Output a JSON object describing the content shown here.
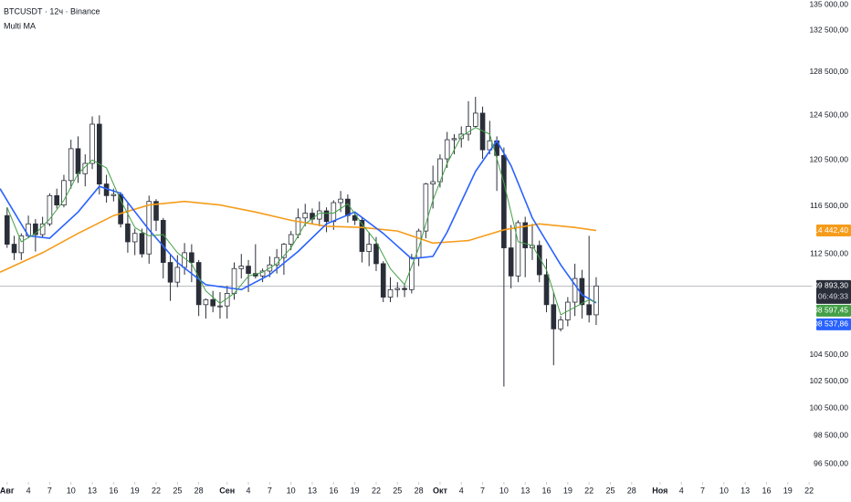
{
  "chart_data": {
    "type": "candlestick",
    "title": "BTCUSDT · 12ч · Binance",
    "subtitle": "Multi MA",
    "xlim": [
      -1,
      113.5
    ],
    "ylim": [
      95000,
      136000
    ],
    "log_scale": true,
    "up_color": "#ffffff",
    "down_color": "#2a2e39",
    "outline_color": "#2a2e39",
    "candles": [
      [
        115700,
        116400,
        113000,
        113300
      ],
      [
        113300,
        114000,
        112000,
        112600
      ],
      [
        112600,
        114200,
        112000,
        114000
      ],
      [
        114000,
        115700,
        113800,
        115000
      ],
      [
        115000,
        115400,
        112700,
        114100
      ],
      [
        114100,
        115600,
        113900,
        115000
      ],
      [
        115000,
        117600,
        114800,
        117400
      ],
      [
        117400,
        118000,
        116300,
        116600
      ],
      [
        116600,
        119200,
        116400,
        118700
      ],
      [
        118700,
        122300,
        118000,
        121500
      ],
      [
        121500,
        122600,
        118500,
        119300
      ],
      [
        119300,
        121000,
        118200,
        120200
      ],
      [
        120200,
        124400,
        119700,
        123700
      ],
      [
        123700,
        124500,
        117500,
        118400
      ],
      [
        118400,
        119200,
        116800,
        117400
      ],
      [
        117400,
        118000,
        116900,
        117500
      ],
      [
        117500,
        117700,
        114700,
        115000
      ],
      [
        115000,
        116800,
        112600,
        113500
      ],
      [
        113500,
        114600,
        112400,
        114200
      ],
      [
        114200,
        114600,
        112200,
        112500
      ],
      [
        112500,
        117400,
        111700,
        116900
      ],
      [
        116900,
        117100,
        114400,
        115300
      ],
      [
        115300,
        115500,
        110500,
        111800
      ],
      [
        111800,
        112400,
        108700,
        110200
      ],
      [
        110200,
        112400,
        109800,
        111400
      ],
      [
        111400,
        113400,
        110800,
        112600
      ],
      [
        112600,
        113300,
        110200,
        111800
      ],
      [
        111800,
        112000,
        107500,
        108400
      ],
      [
        108400,
        108900,
        107300,
        108800
      ],
      [
        108800,
        109500,
        107800,
        108300
      ],
      [
        108300,
        109400,
        107300,
        108300
      ],
      [
        108300,
        109900,
        107300,
        109300
      ],
      [
        109300,
        111800,
        108800,
        111300
      ],
      [
        111300,
        112500,
        110500,
        111500
      ],
      [
        111500,
        112000,
        109400,
        110900
      ],
      [
        110900,
        113300,
        110500,
        110700
      ],
      [
        110700,
        111300,
        110200,
        111100
      ],
      [
        111100,
        112300,
        110600,
        111600
      ],
      [
        111600,
        112900,
        110900,
        112200
      ],
      [
        112200,
        113400,
        110800,
        113300
      ],
      [
        113300,
        114400,
        112800,
        114100
      ],
      [
        114100,
        116300,
        113800,
        115500
      ],
      [
        115500,
        116700,
        114800,
        115900
      ],
      [
        115900,
        116300,
        115000,
        115400
      ],
      [
        115400,
        116900,
        114800,
        116100
      ],
      [
        116100,
        116400,
        114300,
        115200
      ],
      [
        115200,
        117000,
        114500,
        116800
      ],
      [
        116800,
        117800,
        116000,
        117100
      ],
      [
        117100,
        117500,
        115100,
        115700
      ],
      [
        115700,
        116000,
        114900,
        115300
      ],
      [
        115300,
        115500,
        111800,
        112700
      ],
      [
        112700,
        114300,
        111500,
        113300
      ],
      [
        113300,
        113900,
        111100,
        111700
      ],
      [
        111700,
        111900,
        108600,
        109000
      ],
      [
        109000,
        110600,
        108600,
        109600
      ],
      [
        109600,
        110200,
        109000,
        109700
      ],
      [
        109700,
        110100,
        109000,
        109600
      ],
      [
        109600,
        112500,
        109300,
        112200
      ],
      [
        112200,
        114600,
        111500,
        114400
      ],
      [
        114400,
        118500,
        113800,
        118400
      ],
      [
        118400,
        120000,
        116300,
        118600
      ],
      [
        118600,
        121000,
        118100,
        120600
      ],
      [
        120600,
        123000,
        119800,
        122300
      ],
      [
        122300,
        122800,
        121000,
        122400
      ],
      [
        122400,
        123500,
        121600,
        122800
      ],
      [
        122800,
        125800,
        122200,
        123500
      ],
      [
        123500,
        126200,
        123400,
        124700
      ],
      [
        124700,
        125300,
        120600,
        121400
      ],
      [
        121400,
        124000,
        121000,
        122200
      ],
      [
        122200,
        122600,
        117800,
        120900
      ],
      [
        120900,
        121600,
        102100,
        113000
      ],
      [
        113000,
        114900,
        109700,
        110700
      ],
      [
        110700,
        115300,
        110200,
        115100
      ],
      [
        115100,
        115600,
        110600,
        113000
      ],
      [
        113000,
        115000,
        112000,
        113200
      ],
      [
        113200,
        113600,
        110200,
        110800
      ],
      [
        110800,
        112100,
        107800,
        108400
      ],
      [
        108400,
        109400,
        103700,
        106500
      ],
      [
        106500,
        107500,
        106300,
        107200
      ],
      [
        107200,
        109000,
        106700,
        108600
      ],
      [
        108600,
        111700,
        107500,
        110500
      ],
      [
        110500,
        111200,
        107300,
        108400
      ],
      [
        108400,
        114000,
        107000,
        107600
      ],
      [
        107600,
        110600,
        106800,
        109893.3
      ]
    ],
    "series": [
      {
        "color": "#f59c1a",
        "x": [
          -1,
          5,
          10,
          15,
          20,
          25,
          30,
          35,
          40,
          45,
          50,
          55,
          60,
          65,
          70,
          75,
          80,
          83
        ],
        "values": [
          111000,
          112600,
          114200,
          115700,
          116600,
          116900,
          116600,
          116000,
          115300,
          114800,
          114700,
          114400,
          113400,
          113600,
          114500,
          115000,
          114700,
          114442.4
        ],
        "last_label": "114 442,40"
      },
      {
        "color": "#2962ff",
        "x": [
          -1,
          3,
          6,
          10,
          13,
          16,
          20,
          24,
          28,
          33,
          37,
          41,
          45,
          49,
          53,
          57,
          60,
          62,
          66,
          69,
          71,
          74,
          78,
          81,
          83
        ],
        "values": [
          118000,
          114000,
          113800,
          116000,
          118200,
          117600,
          114500,
          111800,
          110000,
          109600,
          110800,
          112700,
          115000,
          116000,
          114200,
          112100,
          112300,
          114300,
          119500,
          122200,
          120000,
          115500,
          111600,
          109200,
          108537.86
        ],
        "last_label": "108 537,86"
      },
      {
        "color": "#43a047",
        "x": [
          0,
          2,
          4,
          6,
          8,
          10,
          12,
          14,
          16,
          18,
          20,
          22,
          24,
          26,
          28,
          30,
          32,
          34,
          36,
          38,
          40,
          42,
          44,
          46,
          48,
          50,
          52,
          54,
          56,
          58,
          60,
          62,
          64,
          66,
          68,
          70,
          72,
          74,
          76,
          78,
          80,
          82,
          83
        ],
        "values": [
          116400,
          113500,
          114200,
          115400,
          117000,
          119300,
          120500,
          119800,
          117000,
          114700,
          114000,
          114100,
          112600,
          111700,
          109500,
          108500,
          109300,
          110700,
          111000,
          111700,
          113000,
          115000,
          115900,
          115900,
          116700,
          115000,
          113500,
          111300,
          110000,
          113000,
          117000,
          120200,
          122600,
          123400,
          122800,
          118500,
          113500,
          113200,
          111200,
          107600,
          108200,
          108800,
          108597.45
        ],
        "last_label": "108 597,45"
      }
    ],
    "last_price": {
      "value": 109893.3,
      "label": "109 893,30"
    },
    "countdown": "06:49:33",
    "yticks": [
      {
        "value": 135000,
        "label": "135 000,00"
      },
      {
        "value": 132500,
        "label": "132 500,00"
      },
      {
        "value": 128500,
        "label": "128 500,00"
      },
      {
        "value": 124500,
        "label": "124 500,00"
      },
      {
        "value": 120500,
        "label": "120 500,00"
      },
      {
        "value": 116500,
        "label": "116 500,00"
      },
      {
        "value": 112500,
        "label": "112 500,00"
      },
      {
        "value": 104500,
        "label": "104 500,00"
      },
      {
        "value": 102500,
        "label": "102 500,00"
      },
      {
        "value": 100500,
        "label": "100 500,00"
      },
      {
        "value": 98500,
        "label": "98 500,00"
      },
      {
        "value": 96500,
        "label": "96 500,00"
      }
    ],
    "xticks": [
      {
        "value": 0,
        "label": "Авг"
      },
      {
        "value": 3,
        "label": "4"
      },
      {
        "value": 6,
        "label": "7"
      },
      {
        "value": 9,
        "label": "10"
      },
      {
        "value": 12,
        "label": "13"
      },
      {
        "value": 15,
        "label": "16"
      },
      {
        "value": 18,
        "label": "19"
      },
      {
        "value": 21,
        "label": "22"
      },
      {
        "value": 24,
        "label": "25"
      },
      {
        "value": 27,
        "label": "28"
      },
      {
        "value": 31,
        "label": "Сен"
      },
      {
        "value": 34,
        "label": "4"
      },
      {
        "value": 37,
        "label": "7"
      },
      {
        "value": 40,
        "label": "10"
      },
      {
        "value": 43,
        "label": "13"
      },
      {
        "value": 46,
        "label": "16"
      },
      {
        "value": 49,
        "label": "19"
      },
      {
        "value": 52,
        "label": "22"
      },
      {
        "value": 55,
        "label": "25"
      },
      {
        "value": 58,
        "label": "28"
      },
      {
        "value": 61,
        "label": "Окт"
      },
      {
        "value": 64,
        "label": "4"
      },
      {
        "value": 67,
        "label": "7"
      },
      {
        "value": 70,
        "label": "10"
      },
      {
        "value": 73,
        "label": "13"
      },
      {
        "value": 76,
        "label": "16"
      },
      {
        "value": 79,
        "label": "19"
      },
      {
        "value": 82,
        "label": "22"
      },
      {
        "value": 85,
        "label": "25"
      },
      {
        "value": 88,
        "label": "28"
      },
      {
        "value": 92,
        "label": "Ноя"
      },
      {
        "value": 95,
        "label": "4"
      },
      {
        "value": 98,
        "label": "7"
      },
      {
        "value": 101,
        "label": "10"
      },
      {
        "value": 104,
        "label": "13"
      },
      {
        "value": 107,
        "label": "16"
      },
      {
        "value": 110,
        "label": "19"
      },
      {
        "value": 113,
        "label": "22"
      }
    ]
  }
}
